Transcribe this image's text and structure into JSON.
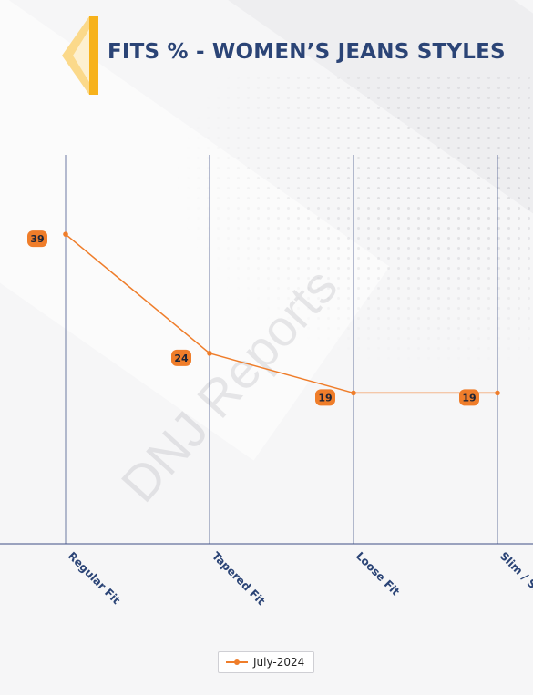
{
  "header": {
    "title": "FITS % - WOMEN’S JEANS STYLES",
    "logo_colors": {
      "primary": "#f7b21b",
      "light": "#fbd98a"
    }
  },
  "watermark": {
    "text": "DNJ Reports"
  },
  "chart_data": {
    "type": "line",
    "title": "FITS % - WOMEN’S JEANS STYLES",
    "categories": [
      "Regular Fit",
      "Tapered Fit",
      "Loose Fit",
      "Slim / S..."
    ],
    "series": [
      {
        "name": "July-2024",
        "values": [
          39,
          24,
          19,
          19
        ],
        "color": "#ef7d2a"
      }
    ],
    "ylim": [
      0,
      49
    ],
    "xlabel": "",
    "ylabel": "",
    "grid": "vertical",
    "legend": "bottom-center",
    "data_labels": true,
    "colors": {
      "line": "#ef7d2a",
      "grid": "#3d4f86",
      "label_bg": "#ef7d2a",
      "label_text": "#1d2436",
      "axis_text": "#2b4476"
    }
  }
}
